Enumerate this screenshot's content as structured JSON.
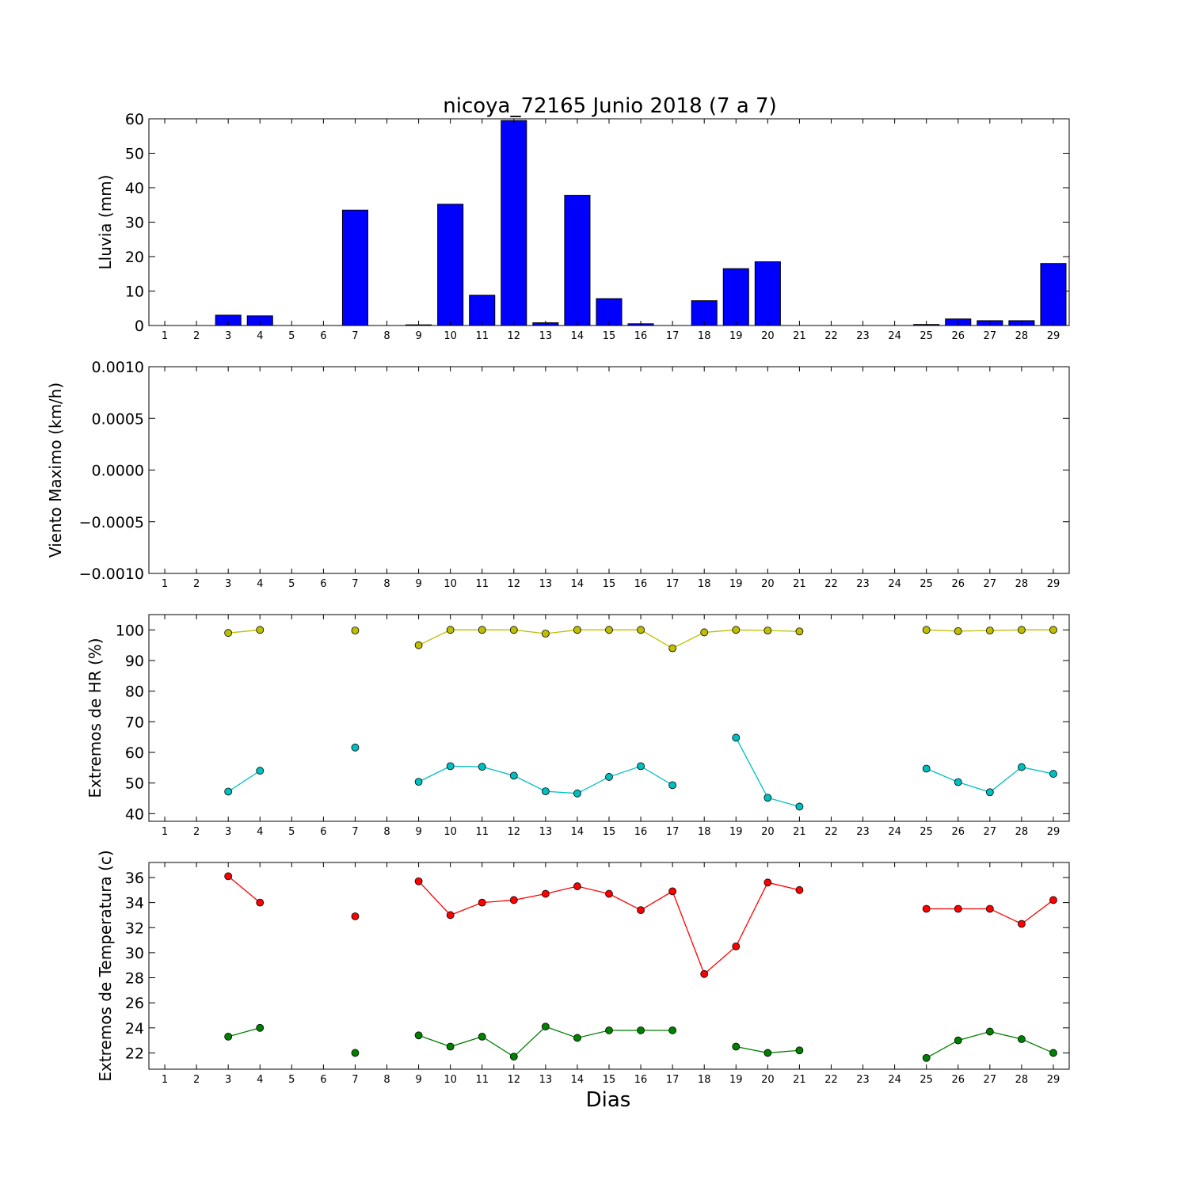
{
  "title": "nicoya_72165 Junio 2018  (7 a 7)",
  "xlabel": "Dias",
  "colors": {
    "bar": "#0000ff",
    "hr_max": "#bfbf00",
    "hr_min": "#00bfbf",
    "temp_max": "#ff0000",
    "temp_min": "#008000"
  },
  "chart_data": [
    {
      "type": "bar",
      "ylabel": "Lluvia (mm)",
      "ylim": [
        0,
        60
      ],
      "yticks": [
        "0",
        "10",
        "20",
        "30",
        "40",
        "50",
        "60"
      ],
      "x": [
        1,
        2,
        3,
        4,
        5,
        6,
        7,
        8,
        9,
        10,
        11,
        12,
        13,
        14,
        15,
        16,
        17,
        18,
        19,
        20,
        21,
        22,
        23,
        24,
        25,
        26,
        27,
        28,
        29
      ],
      "values": [
        0,
        0,
        3,
        2.8,
        0,
        0,
        33.5,
        0,
        0.2,
        35.2,
        8.8,
        59.5,
        0.8,
        37.8,
        7.8,
        0.5,
        0,
        7.2,
        16.5,
        18.5,
        0,
        0,
        0,
        0,
        0.3,
        1.9,
        1.4,
        1.4,
        18
      ]
    },
    {
      "type": "line",
      "ylabel": "Viento Maximo (km/h)",
      "ylim": [
        -0.001,
        0.001
      ],
      "yticks": [
        "−0.0010",
        "−0.0005",
        "0.0000",
        "0.0005",
        "0.0010"
      ],
      "series": []
    },
    {
      "type": "line",
      "ylabel": "Extremos de HR (%)",
      "ylim": [
        37.5,
        105
      ],
      "yticks": [
        "40",
        "50",
        "60",
        "70",
        "80",
        "90",
        "100"
      ],
      "series": [
        {
          "color": "hr_max",
          "x": [
            1,
            2,
            3,
            4,
            5,
            6,
            7,
            8,
            9,
            10,
            11,
            12,
            13,
            14,
            15,
            16,
            17,
            18,
            19,
            20,
            21,
            22,
            23,
            24,
            25,
            26,
            27,
            28,
            29
          ],
          "values": [
            null,
            null,
            99,
            100,
            null,
            null,
            99.8,
            null,
            95,
            100,
            100,
            100,
            98.8,
            100,
            100,
            100,
            94,
            99.2,
            100,
            99.8,
            99.5,
            null,
            null,
            null,
            100,
            99.6,
            99.8,
            100,
            100
          ]
        },
        {
          "color": "hr_min",
          "x": [
            1,
            2,
            3,
            4,
            5,
            6,
            7,
            8,
            9,
            10,
            11,
            12,
            13,
            14,
            15,
            16,
            17,
            18,
            19,
            20,
            21,
            22,
            23,
            24,
            25,
            26,
            27,
            28,
            29
          ],
          "values": [
            null,
            null,
            47.2,
            54,
            null,
            null,
            61.6,
            null,
            50.4,
            55.5,
            55.3,
            52.4,
            47.3,
            46.6,
            52,
            55.5,
            49.3,
            null,
            64.8,
            45.2,
            42.3,
            null,
            null,
            null,
            54.7,
            50.3,
            47,
            55.2,
            53
          ]
        }
      ]
    },
    {
      "type": "line",
      "ylabel": "Extremos de Temperatura (c)",
      "ylim": [
        20.7,
        37.2
      ],
      "yticks": [
        "22",
        "24",
        "26",
        "28",
        "30",
        "32",
        "34",
        "36"
      ],
      "series": [
        {
          "color": "temp_max",
          "x": [
            1,
            2,
            3,
            4,
            5,
            6,
            7,
            8,
            9,
            10,
            11,
            12,
            13,
            14,
            15,
            16,
            17,
            18,
            19,
            20,
            21,
            22,
            23,
            24,
            25,
            26,
            27,
            28,
            29
          ],
          "values": [
            null,
            null,
            36.1,
            34,
            null,
            null,
            32.9,
            null,
            35.7,
            33,
            34,
            34.2,
            34.7,
            35.3,
            34.7,
            33.4,
            34.9,
            28.3,
            30.5,
            35.6,
            35,
            null,
            null,
            null,
            33.5,
            33.5,
            33.5,
            32.3,
            34.2
          ]
        },
        {
          "color": "temp_min",
          "x": [
            1,
            2,
            3,
            4,
            5,
            6,
            7,
            8,
            9,
            10,
            11,
            12,
            13,
            14,
            15,
            16,
            17,
            18,
            19,
            20,
            21,
            22,
            23,
            24,
            25,
            26,
            27,
            28,
            29
          ],
          "values": [
            null,
            null,
            23.3,
            24,
            null,
            null,
            22,
            null,
            23.4,
            22.5,
            23.3,
            21.7,
            24.1,
            23.2,
            23.8,
            23.8,
            23.8,
            null,
            22.5,
            22,
            22.2,
            null,
            null,
            null,
            21.6,
            23,
            23.7,
            23.1,
            22
          ]
        }
      ]
    }
  ]
}
